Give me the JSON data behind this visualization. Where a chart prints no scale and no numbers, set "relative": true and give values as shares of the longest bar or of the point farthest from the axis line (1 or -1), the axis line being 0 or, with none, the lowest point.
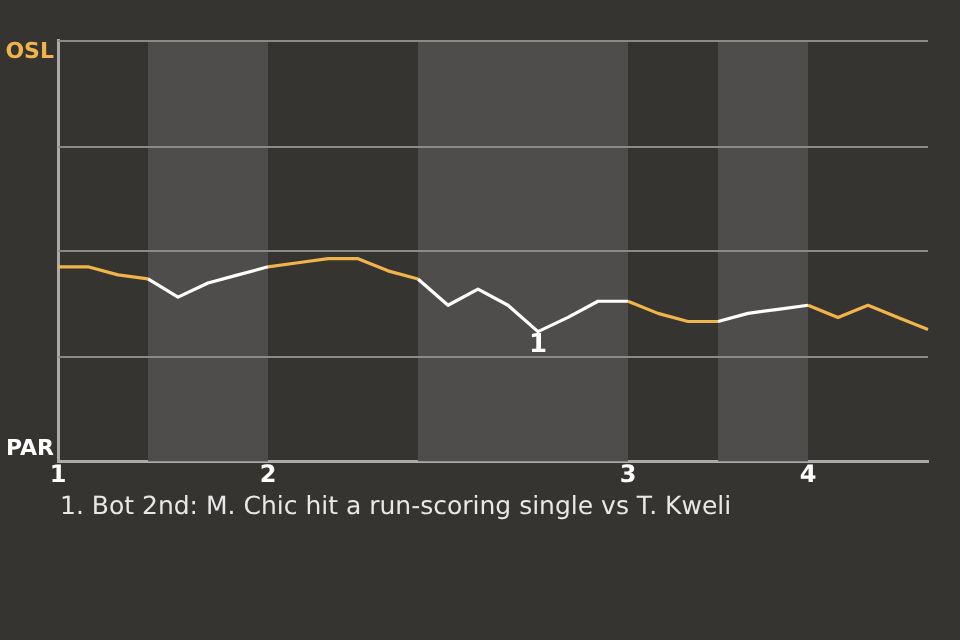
{
  "chart_data": {
    "type": "line",
    "relative": true,
    "categories": [
      "1",
      null,
      null,
      null,
      null,
      null,
      null,
      "2",
      null,
      null,
      null,
      null,
      null,
      null,
      null,
      null,
      null,
      null,
      null,
      "3",
      null,
      null,
      null,
      null,
      null,
      "4",
      null,
      null,
      null,
      null
    ],
    "series": [
      {
        "color": "#f0b44a",
        "values": [
          0.96,
          0.96,
          0.92,
          0.9,
          null,
          null,
          null,
          0.96,
          0.98,
          1,
          1,
          0.94,
          0.9,
          null,
          null,
          null,
          null,
          null,
          null,
          0.79,
          0.73,
          0.69,
          0.69,
          null,
          null,
          0.77,
          0.71,
          0.77,
          0.71,
          0.65
        ]
      },
      {
        "color": "#ffffff",
        "values": [
          null,
          null,
          null,
          0.9,
          0.81,
          0.88,
          0.92,
          0.96,
          null,
          null,
          null,
          null,
          0.9,
          0.77,
          0.85,
          0.77,
          0.64,
          0.71,
          0.79,
          0.79,
          null,
          null,
          0.69,
          0.73,
          0.75,
          0.77,
          null,
          null,
          null,
          null
        ]
      }
    ],
    "annotations": [
      "OSL",
      "PAR",
      {
        "text": "1",
        "y": 0.64
      },
      "1. Bot 2nd: M. Chic hit a run-scoring single vs T. Kweli"
    ],
    "ref_lines": [
      {
        "axis": "y",
        "value": 0.52,
        "color": "#8a8a8a"
      },
      {
        "axis": "y",
        "value": 1.04,
        "color": "#8a8a8a"
      },
      {
        "axis": "y",
        "value": 1.56,
        "color": "#8a8a8a"
      },
      {
        "axis": "y",
        "value": 2.08,
        "color": "#8a8a8a"
      }
    ],
    "legend": false,
    "marker": "none",
    "line_style": "solid"
  }
}
